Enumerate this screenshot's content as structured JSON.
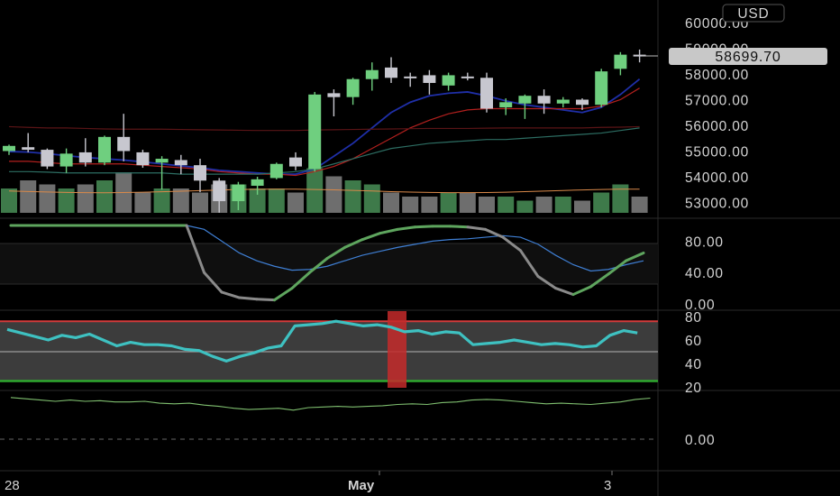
{
  "chart_data": {
    "type": "candlestick",
    "currency": "USD",
    "last_price": "58699.70",
    "price_axis": {
      "ticks": [
        "60000.00",
        "59000.00",
        "58000.00",
        "57000.00",
        "56000.00",
        "55000.00",
        "54000.00",
        "53000.00"
      ]
    },
    "time_axis": {
      "labels": [
        "28",
        "May",
        "3"
      ]
    },
    "candles": [
      {
        "o": 55000,
        "h": 55250,
        "l": 54850,
        "c": 55200,
        "dir": "up"
      },
      {
        "o": 55150,
        "h": 55700,
        "l": 54950,
        "c": 55050,
        "dir": "down"
      },
      {
        "o": 55050,
        "h": 55100,
        "l": 54300,
        "c": 54400,
        "dir": "down"
      },
      {
        "o": 54400,
        "h": 55100,
        "l": 54150,
        "c": 54900,
        "dir": "up"
      },
      {
        "o": 54950,
        "h": 55500,
        "l": 54400,
        "c": 54550,
        "dir": "down"
      },
      {
        "o": 54550,
        "h": 55600,
        "l": 54450,
        "c": 55550,
        "dir": "up"
      },
      {
        "o": 55550,
        "h": 56450,
        "l": 54600,
        "c": 55000,
        "dir": "down"
      },
      {
        "o": 54950,
        "h": 55050,
        "l": 54350,
        "c": 54450,
        "dir": "down"
      },
      {
        "o": 54550,
        "h": 54800,
        "l": 53500,
        "c": 54700,
        "dir": "up"
      },
      {
        "o": 54650,
        "h": 54850,
        "l": 54100,
        "c": 54450,
        "dir": "down"
      },
      {
        "o": 54450,
        "h": 54700,
        "l": 53400,
        "c": 53850,
        "dir": "down"
      },
      {
        "o": 53850,
        "h": 53950,
        "l": 52600,
        "c": 53050,
        "dir": "down"
      },
      {
        "o": 53050,
        "h": 53800,
        "l": 52700,
        "c": 53700,
        "dir": "up"
      },
      {
        "o": 53650,
        "h": 54000,
        "l": 53300,
        "c": 53900,
        "dir": "up"
      },
      {
        "o": 53950,
        "h": 54550,
        "l": 53900,
        "c": 54500,
        "dir": "up"
      },
      {
        "o": 54750,
        "h": 54950,
        "l": 54250,
        "c": 54400,
        "dir": "down"
      },
      {
        "o": 54300,
        "h": 57300,
        "l": 54200,
        "c": 57200,
        "dir": "up"
      },
      {
        "o": 57250,
        "h": 57400,
        "l": 56350,
        "c": 57100,
        "dir": "down"
      },
      {
        "o": 57100,
        "h": 57850,
        "l": 56800,
        "c": 57800,
        "dir": "up"
      },
      {
        "o": 57800,
        "h": 58450,
        "l": 57350,
        "c": 58150,
        "dir": "up"
      },
      {
        "o": 58250,
        "h": 58650,
        "l": 57650,
        "c": 57850,
        "dir": "down"
      },
      {
        "o": 57900,
        "h": 58050,
        "l": 57500,
        "c": 57850,
        "dir": "down"
      },
      {
        "o": 57950,
        "h": 58150,
        "l": 57200,
        "c": 57650,
        "dir": "down"
      },
      {
        "o": 57550,
        "h": 58050,
        "l": 57350,
        "c": 57950,
        "dir": "up"
      },
      {
        "o": 57900,
        "h": 58050,
        "l": 57750,
        "c": 57850,
        "dir": "down"
      },
      {
        "o": 57850,
        "h": 58050,
        "l": 56500,
        "c": 56650,
        "dir": "down"
      },
      {
        "o": 56700,
        "h": 57050,
        "l": 56400,
        "c": 56900,
        "dir": "up"
      },
      {
        "o": 56850,
        "h": 57200,
        "l": 56250,
        "c": 57150,
        "dir": "up"
      },
      {
        "o": 57150,
        "h": 57400,
        "l": 56450,
        "c": 56850,
        "dir": "down"
      },
      {
        "o": 56850,
        "h": 57100,
        "l": 56700,
        "c": 57000,
        "dir": "up"
      },
      {
        "o": 57000,
        "h": 57050,
        "l": 56600,
        "c": 56800,
        "dir": "down"
      },
      {
        "o": 56800,
        "h": 58200,
        "l": 56700,
        "c": 58100,
        "dir": "up"
      },
      {
        "o": 58200,
        "h": 58850,
        "l": 57950,
        "c": 58750,
        "dir": "up"
      },
      {
        "o": 58750,
        "h": 58950,
        "l": 58450,
        "c": 58700,
        "dir": "down"
      }
    ],
    "volume": [
      3,
      4,
      3.5,
      3,
      3.5,
      4,
      5,
      2.5,
      3,
      3,
      2.5,
      3.5,
      3.5,
      3,
      3,
      2.5,
      5.5,
      4.5,
      4,
      3.5,
      2.5,
      2,
      2,
      2.5,
      2.5,
      2,
      2,
      1.5,
      2,
      2,
      1.5,
      2.5,
      3.5,
      2
    ],
    "ma_lines": {
      "navy": [
        54980,
        54960,
        54900,
        54820,
        54750,
        54700,
        54650,
        54580,
        54500,
        54420,
        54350,
        54250,
        54200,
        54150,
        54100,
        54100,
        54300,
        54800,
        55300,
        55900,
        56500,
        56900,
        57150,
        57250,
        57300,
        57150,
        56950,
        56800,
        56700,
        56600,
        56500,
        56700,
        57200,
        57800
      ],
      "red": [
        54600,
        54600,
        54550,
        54500,
        54500,
        54500,
        54500,
        54450,
        54400,
        54350,
        54300,
        54200,
        54150,
        54100,
        54100,
        54050,
        54200,
        54400,
        54700,
        55100,
        55500,
        55900,
        56200,
        56450,
        56600,
        56650,
        56650,
        56650,
        56650,
        56650,
        56650,
        56750,
        57000,
        57450
      ],
      "teal": [
        54200,
        54200,
        54180,
        54150,
        54150,
        54150,
        54150,
        54150,
        54150,
        54100,
        54100,
        54100,
        54100,
        54100,
        54150,
        54200,
        54300,
        54500,
        54700,
        54900,
        55100,
        55200,
        55300,
        55350,
        55400,
        55450,
        55450,
        55500,
        55550,
        55600,
        55650,
        55700,
        55800,
        55900
      ],
      "darkred": [
        55950,
        55920,
        55900,
        55900,
        55880,
        55860,
        55850,
        55850,
        55850,
        55840,
        55830,
        55820,
        55810,
        55800,
        55800,
        55800,
        55820,
        55830,
        55840,
        55850,
        55860,
        55870,
        55880,
        55880,
        55880,
        55890,
        55900,
        55900,
        55900,
        55900,
        55900,
        55920,
        55930,
        55950
      ]
    },
    "stochastic": {
      "axis_ticks": [
        "80.00",
        "40.00",
        "0.00"
      ],
      "k_line": [
        100,
        100,
        100,
        100,
        100,
        100,
        100,
        100,
        100,
        100,
        100,
        40,
        15,
        8,
        6,
        5,
        20,
        40,
        58,
        72,
        82,
        90,
        95,
        98,
        99,
        99,
        98,
        95,
        85,
        68,
        35,
        20,
        12,
        22,
        38,
        55,
        65
      ],
      "d_line": [
        99,
        99.5,
        100,
        100,
        100,
        100,
        100,
        100,
        100,
        100,
        100,
        95,
        80,
        65,
        55,
        48,
        43,
        44,
        48,
        55,
        62,
        67,
        72,
        76,
        80,
        82,
        83,
        85,
        87,
        85,
        76,
        62,
        50,
        42,
        44,
        50,
        55
      ]
    },
    "rsi": {
      "axis_ticks": [
        "80",
        "60",
        "40",
        "20"
      ],
      "upper_band": 76,
      "lower_band": 25,
      "values": [
        69,
        66,
        63,
        60,
        64,
        62,
        65,
        60,
        55,
        58,
        56,
        56,
        55,
        52,
        51,
        46,
        42,
        46,
        49,
        53,
        55,
        72,
        73,
        74,
        76,
        74,
        72,
        73,
        71,
        67,
        68,
        65,
        67,
        66,
        56,
        57,
        58,
        60,
        58,
        56,
        57,
        56,
        54,
        55,
        64,
        68,
        66
      ]
    },
    "oscillator": {
      "axis_ticks": [
        "0.00"
      ],
      "values": [
        66,
        64,
        62,
        60,
        62,
        60,
        61,
        59,
        59,
        60,
        57,
        56,
        57,
        54,
        52,
        49,
        47,
        48,
        49,
        46,
        50,
        51,
        52,
        51,
        52,
        53,
        55,
        56,
        55,
        58,
        59,
        62,
        63,
        62,
        60,
        58,
        56,
        57,
        56,
        55,
        57,
        59,
        63,
        65
      ]
    }
  }
}
